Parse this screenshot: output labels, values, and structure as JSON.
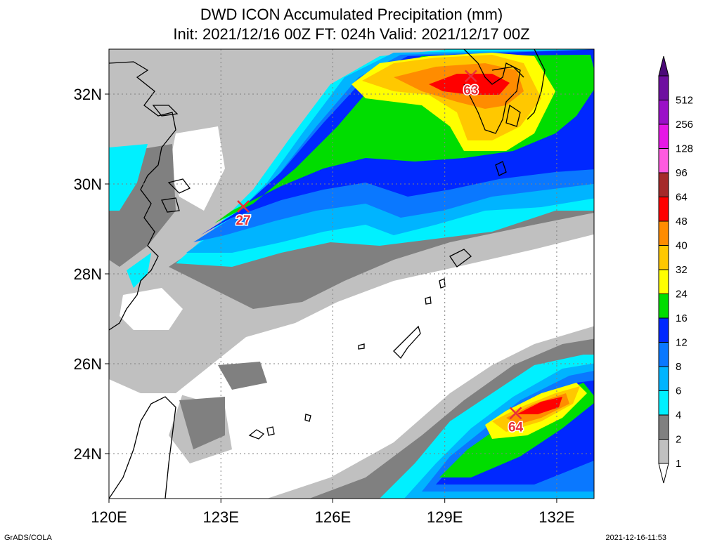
{
  "title_line1": "DWD ICON Accumulated Precipitation (mm)",
  "title_line2": "Init: 2021/12/16 00Z  FT: 024h  Valid: 2021/12/17 00Z",
  "lat_ticks": [
    {
      "label": "32N",
      "lat": 32
    },
    {
      "label": "30N",
      "lat": 30
    },
    {
      "label": "28N",
      "lat": 28
    },
    {
      "label": "26N",
      "lat": 26
    },
    {
      "label": "24N",
      "lat": 24
    }
  ],
  "lon_ticks": [
    {
      "label": "120E",
      "lon": 120
    },
    {
      "label": "123E",
      "lon": 123
    },
    {
      "label": "126E",
      "lon": 126
    },
    {
      "label": "129E",
      "lon": 129
    },
    {
      "label": "132E",
      "lon": 132
    }
  ],
  "map_extent": {
    "lon": [
      120,
      133
    ],
    "lat": [
      23,
      33
    ]
  },
  "colorbar": [
    {
      "label": "512",
      "color": "#6e0fa0"
    },
    {
      "label": "256",
      "color": "#9b10c8"
    },
    {
      "label": "128",
      "color": "#e617e6"
    },
    {
      "label": "96",
      "color": "#ff5ae0"
    },
    {
      "label": "64",
      "color": "#a52a2a"
    },
    {
      "label": "48",
      "color": "#ff0000"
    },
    {
      "label": "40",
      "color": "#ff8c00"
    },
    {
      "label": "32",
      "color": "#ffc800"
    },
    {
      "label": "24",
      "color": "#ffff00"
    },
    {
      "label": "16",
      "color": "#00dd00"
    },
    {
      "label": "12",
      "color": "#0028ff"
    },
    {
      "label": "8",
      "color": "#0a78ff"
    },
    {
      "label": "6",
      "color": "#00b4ff"
    },
    {
      "label": "4",
      "color": "#00f0ff"
    },
    {
      "label": "2",
      "color": "#808080"
    },
    {
      "label": "1",
      "color": "#c0c0c0"
    }
  ],
  "maxima": [
    {
      "label": "27",
      "lon": 123.6,
      "lat": 29.5
    },
    {
      "label": "63",
      "lon": 129.7,
      "lat": 32.4
    },
    {
      "label": "64",
      "lon": 130.9,
      "lat": 24.9
    }
  ],
  "credit": "GrADS/COLA",
  "timestamp": "2021-12-16-11:53"
}
